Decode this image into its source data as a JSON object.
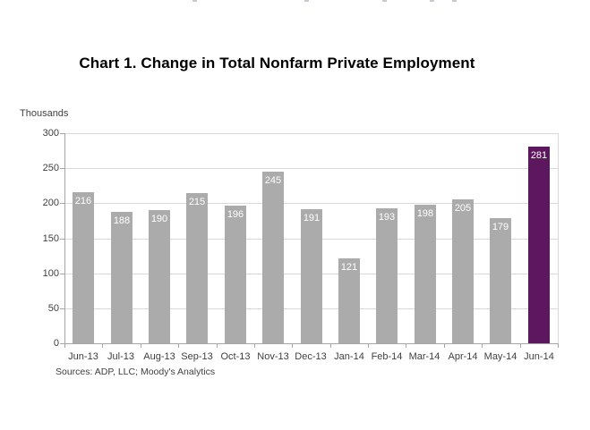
{
  "chart_data": {
    "type": "bar",
    "title": "Chart 1. Change in Total Nonfarm Private Employment",
    "ylabel": "Thousands",
    "xlabel": "",
    "categories": [
      "Jun-13",
      "Jul-13",
      "Aug-13",
      "Sep-13",
      "Oct-13",
      "Nov-13",
      "Dec-13",
      "Jan-14",
      "Feb-14",
      "Mar-14",
      "Apr-14",
      "May-14",
      "Jun-14"
    ],
    "values": [
      216,
      188,
      190,
      215,
      196,
      245,
      191,
      121,
      193,
      198,
      205,
      179,
      281
    ],
    "ylim": [
      0,
      300
    ],
    "ytick_step": 50,
    "ytick_labels": [
      "0",
      "50",
      "100",
      "150",
      "200",
      "250",
      "300"
    ],
    "grid": "horizontal gridlines on, drawn behind bars",
    "legend": "none",
    "highlight_index": 12,
    "bar_label_position": "inside-top",
    "colors": {
      "bar_default": "#ababab",
      "bar_highlight": "#5d175e",
      "gridline": "#d9d9d9",
      "axis_line": "#a6a6a6",
      "plot_right_border": "#d9d9d9",
      "bar_label_text": "#ffffff",
      "tick_label_text": "#404040",
      "title_text": "#000000",
      "background": "#ffffff"
    },
    "source": "Sources: ADP, LLC; Moody's Analytics"
  }
}
